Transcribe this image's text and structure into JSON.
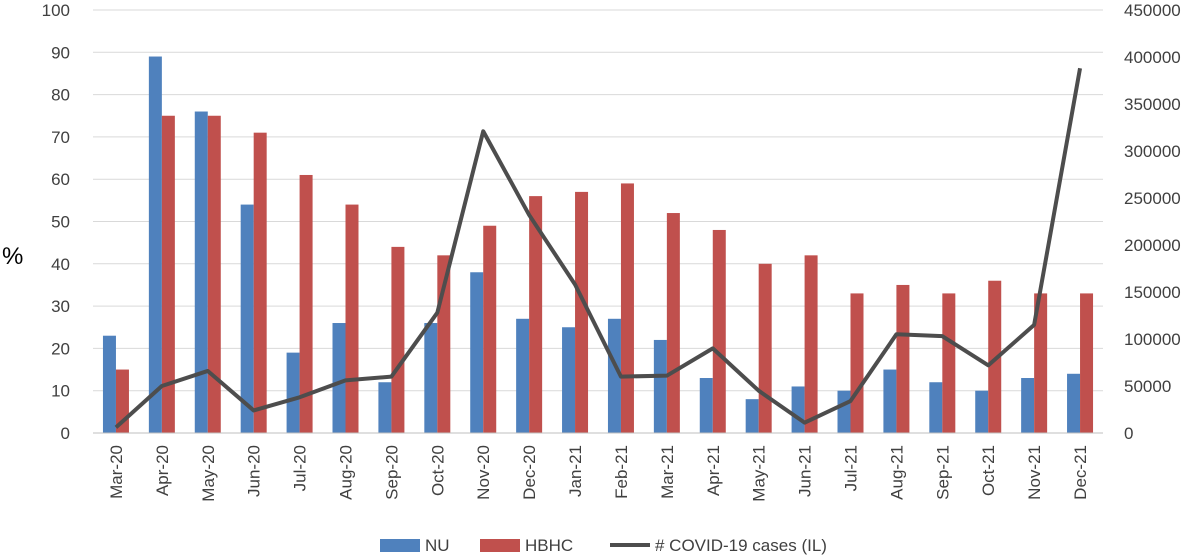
{
  "chart_data": {
    "type": "bar",
    "categories": [
      "Mar-20",
      "Apr-20",
      "May-20",
      "Jun-20",
      "Jul-20",
      "Aug-20",
      "Sep-20",
      "Oct-20",
      "Nov-20",
      "Dec-20",
      "Jan-21",
      "Feb-21",
      "Mar-21",
      "Apr-21",
      "May-21",
      "Jun-21",
      "Jul-21",
      "Aug-21",
      "Sep-21",
      "Oct-21",
      "Nov-21",
      "Dec-21"
    ],
    "series": [
      {
        "name": "NU",
        "type": "bar",
        "axis": "left",
        "color": "#4f81bd",
        "values": [
          23,
          89,
          76,
          54,
          19,
          26,
          12,
          26,
          38,
          27,
          25,
          27,
          22,
          13,
          8,
          11,
          10,
          15,
          12,
          10,
          13,
          14
        ]
      },
      {
        "name": "HBHC",
        "type": "bar",
        "axis": "left",
        "color": "#c0504d",
        "values": [
          15,
          75,
          75,
          71,
          61,
          54,
          44,
          42,
          49,
          56,
          57,
          59,
          52,
          48,
          40,
          42,
          33,
          35,
          33,
          36,
          33,
          33
        ]
      },
      {
        "name": "# COVID-19 cases (IL)",
        "type": "line",
        "axis": "right",
        "color": "#4d4d4d",
        "values": [
          6000,
          50000,
          66000,
          24000,
          38000,
          56000,
          60000,
          128000,
          321000,
          232000,
          158000,
          60000,
          61000,
          90000,
          45000,
          11000,
          34000,
          105000,
          103000,
          72000,
          115000,
          388000
        ]
      }
    ],
    "ylabel": "%",
    "ylim": [
      0,
      100
    ],
    "yticks": [
      0,
      10,
      20,
      30,
      40,
      50,
      60,
      70,
      80,
      90,
      100
    ],
    "y2lim": [
      0,
      450000
    ],
    "y2ticks": [
      0,
      50000,
      100000,
      150000,
      200000,
      250000,
      300000,
      350000,
      400000,
      450000
    ],
    "grid": true,
    "legend_position": "bottom"
  }
}
